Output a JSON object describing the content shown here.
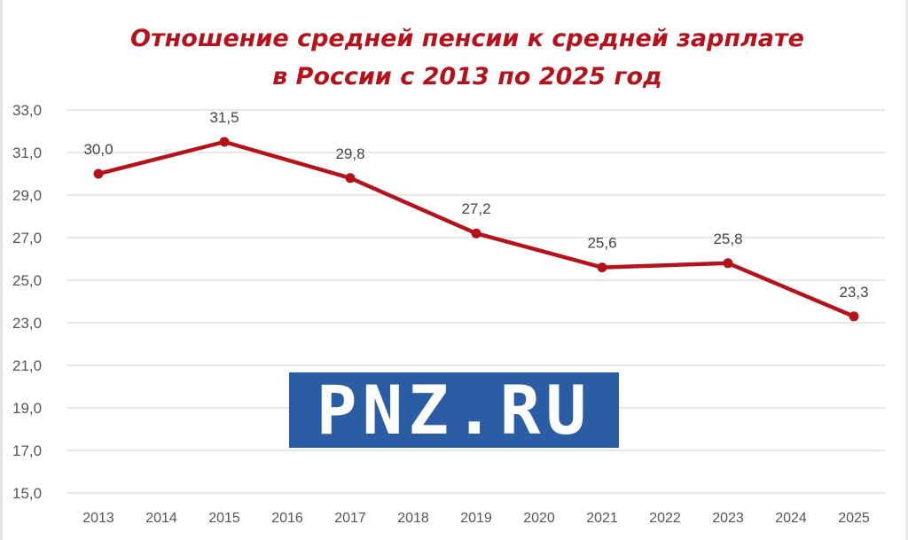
{
  "chart_data": {
    "type": "line",
    "title": "Отношение средней пенсии к средней зарплате в России с 2013 по 2025 год",
    "title_lines": [
      "Отношение средней пенсии к средней зарплате",
      "в России с 2013 по 2025 год"
    ],
    "xlabel": "",
    "ylabel": "",
    "categories": [
      "2013",
      "2014",
      "2015",
      "2016",
      "2017",
      "2018",
      "2019",
      "2020",
      "2021",
      "2022",
      "2023",
      "2024",
      "2025"
    ],
    "series": [
      {
        "name": "Отношение средней пенсии к средней зарплате, %",
        "color": "#b5121b",
        "points": [
          {
            "x": "2013",
            "y": 30.0,
            "label": "30,0"
          },
          {
            "x": "2015",
            "y": 31.5,
            "label": "31,5"
          },
          {
            "x": "2017",
            "y": 29.8,
            "label": "29,8"
          },
          {
            "x": "2019",
            "y": 27.2,
            "label": "27,2"
          },
          {
            "x": "2021",
            "y": 25.6,
            "label": "25,6"
          },
          {
            "x": "2023",
            "y": 25.8,
            "label": "25,8"
          },
          {
            "x": "2025",
            "y": 23.3,
            "label": "23,3"
          }
        ]
      }
    ],
    "yticks": [
      "15,0",
      "17,0",
      "19,0",
      "21,0",
      "23,0",
      "25,0",
      "27,0",
      "29,0",
      "31,0",
      "33,0"
    ],
    "ylim": [
      15,
      33
    ],
    "grid": true,
    "legend": null
  },
  "watermark": {
    "text": "PNZ.RU",
    "color": "#2b5da5"
  }
}
